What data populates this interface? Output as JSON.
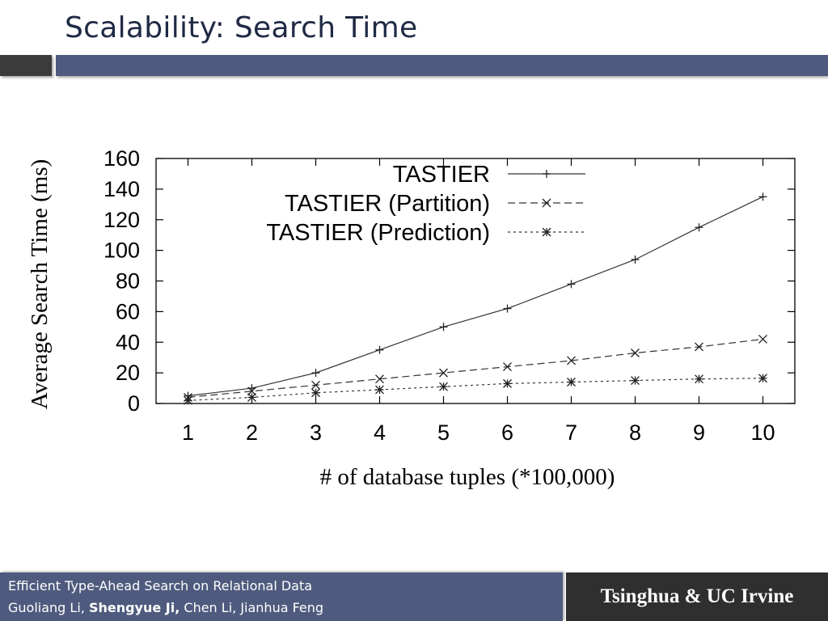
{
  "slide": {
    "title": "Scalability:  Search Time"
  },
  "footer": {
    "line1": "Efficient Type-Ahead Search on Relational Data",
    "authors": {
      "a1": "Guoliang Li, ",
      "a2": "Shengyue Ji,",
      "a3": " Chen Li, Jianhua Feng"
    },
    "institution": "Tsinghua & UC Irvine"
  },
  "chart_data": {
    "type": "line",
    "title": "",
    "xlabel": "# of database tuples (*100,000)",
    "ylabel": "Average Search Time (ms)",
    "x": [
      1,
      2,
      3,
      4,
      5,
      6,
      7,
      8,
      9,
      10
    ],
    "xlim": [
      0.5,
      10.5
    ],
    "ylim": [
      0,
      160
    ],
    "yticks": [
      0,
      20,
      40,
      60,
      80,
      100,
      120,
      140,
      160
    ],
    "grid": false,
    "legend_position": "top-left",
    "series": [
      {
        "name": "TASTIER",
        "values": [
          5,
          10,
          20,
          35,
          50,
          62,
          78,
          94,
          115,
          135
        ],
        "marker": "plus",
        "dash": "solid"
      },
      {
        "name": "TASTIER (Partition)",
        "values": [
          4,
          8,
          12,
          16,
          20,
          24,
          28,
          33,
          37,
          42
        ],
        "marker": "cross",
        "dash": "dashed"
      },
      {
        "name": "TASTIER (Prediction)",
        "values": [
          2,
          4,
          7,
          9,
          11,
          13,
          14,
          15,
          16,
          16.5
        ],
        "marker": "star",
        "dash": "dotted"
      }
    ]
  }
}
